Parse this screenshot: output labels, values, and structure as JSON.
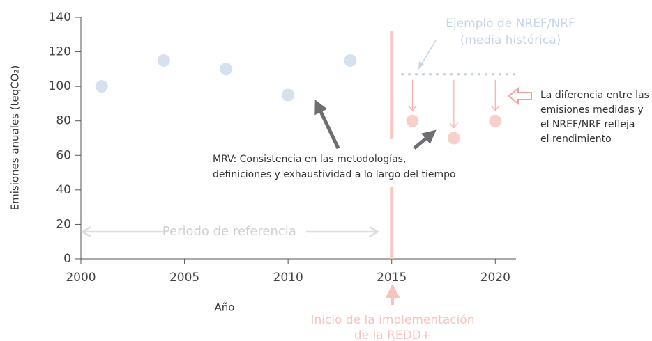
{
  "chart_data": {
    "type": "scatter",
    "x_label": "Año",
    "y_label": "Emisiones anuales (teqCO₂)",
    "xlim": [
      2000,
      2021
    ],
    "ylim": [
      0,
      140
    ],
    "xticks": [
      2000,
      2005,
      2010,
      2015,
      2020
    ],
    "yticks": [
      0,
      20,
      40,
      60,
      80,
      100,
      120,
      140
    ],
    "series": [
      {
        "color": "#d6e1ef",
        "x": [
          2001,
          2004,
          2007,
          2010,
          2013
        ],
        "values": [
          100,
          115,
          110,
          95,
          115
        ]
      },
      {
        "color": "#f8d0cb",
        "x": [
          2016,
          2018,
          2020
        ],
        "values": [
          80,
          70,
          80
        ]
      }
    ],
    "reference_level": {
      "value": 107,
      "x": [
        2015.5,
        2021
      ],
      "color": "#c6d5ea"
    },
    "implementation_start": 2015,
    "annotations": {
      "nref": [
        "Ejemplo de NREF/NRF",
        "(media histórica)"
      ],
      "difference": [
        "La diferencia entre las",
        "emisiones medidas y",
        "el NREF/NRF refleja",
        "el rendimiento"
      ],
      "mrv": [
        "MRV: Consistencia en las metodologías,",
        "definiciones y exhaustividad a lo largo del tiempo"
      ],
      "reference_period": "Periodo de referencia",
      "implementation": [
        "Inicio de la implementación",
        "de la REDD+"
      ]
    }
  }
}
